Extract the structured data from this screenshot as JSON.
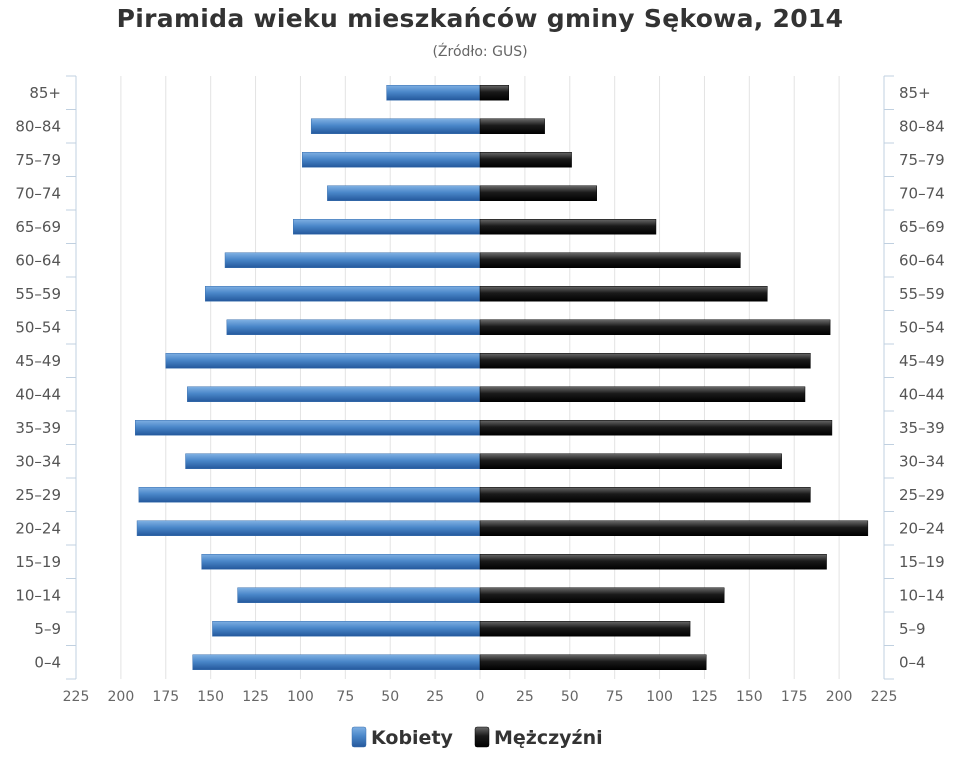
{
  "title": "Piramida wieku mieszkańców gminy Sękowa, 2014",
  "subtitle": "(Źródło: GUS)",
  "chart_data": {
    "type": "bar",
    "orientation": "horizontal",
    "title": "Piramida wieku mieszkańców gminy Sękowa, 2014",
    "subtitle": "(Źródło: GUS)",
    "categories": [
      "85+",
      "80–84",
      "75–79",
      "70–74",
      "65–69",
      "60–64",
      "55–59",
      "50–54",
      "45–49",
      "40–44",
      "35–39",
      "30–34",
      "25–29",
      "20–24",
      "15–19",
      "10–14",
      "5–9",
      "0–4"
    ],
    "series": [
      {
        "name": "Kobiety",
        "values": [
          52,
          94,
          99,
          85,
          104,
          142,
          153,
          141,
          175,
          163,
          192,
          164,
          190,
          191,
          155,
          135,
          149,
          160
        ],
        "color": "#4f86c6",
        "side": "left"
      },
      {
        "name": "Mężczyźni",
        "values": [
          16,
          36,
          51,
          65,
          98,
          145,
          160,
          195,
          184,
          181,
          196,
          168,
          184,
          216,
          193,
          136,
          117,
          126
        ],
        "color": "#1a1a1a",
        "side": "right"
      }
    ],
    "xlim": [
      -225,
      225
    ],
    "x_ticks": [
      -225,
      -200,
      -175,
      -150,
      -125,
      -100,
      -75,
      -50,
      -25,
      0,
      25,
      50,
      75,
      100,
      125,
      150,
      175,
      200,
      225
    ],
    "x_tick_labels": [
      "225",
      "200",
      "175",
      "150",
      "125",
      "100",
      "75",
      "50",
      "25",
      "0",
      "25",
      "50",
      "75",
      "100",
      "125",
      "150",
      "175",
      "200",
      "225"
    ],
    "grid": true,
    "legend_position": "bottom"
  }
}
